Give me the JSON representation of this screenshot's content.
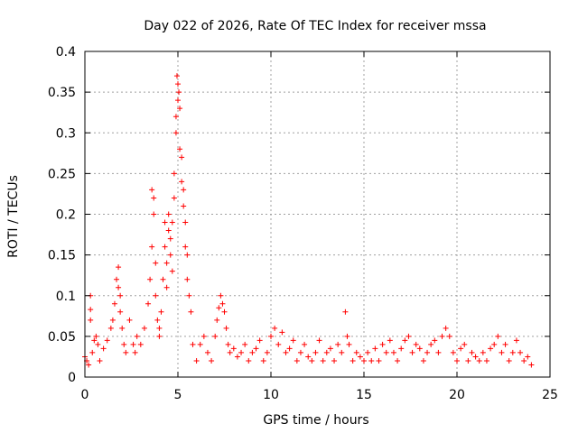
{
  "chart_data": {
    "type": "scatter",
    "title": "Day 022 of 2026, Rate Of TEC Index for receiver mssa",
    "xlabel": "GPS time / hours",
    "ylabel": "ROTI / TECUs",
    "xlim": [
      0,
      25
    ],
    "ylim": [
      0,
      0.4
    ],
    "x_ticks": [
      0,
      5,
      10,
      15,
      20,
      25
    ],
    "x_tick_labels": [
      "0",
      "5",
      "10",
      "15",
      "20",
      "25"
    ],
    "y_ticks": [
      0,
      0.05,
      0.1,
      0.15,
      0.2,
      0.25,
      0.3,
      0.35,
      0.4
    ],
    "y_tick_labels": [
      "0",
      "0.05",
      "0.1",
      "0.15",
      "0.2",
      "0.25",
      "0.3",
      "0.35",
      "0.4"
    ],
    "grid": true,
    "marker": "+",
    "marker_color": "#ff0000",
    "series": [
      {
        "name": "ROTI",
        "x": [
          0.0,
          0.1,
          0.2,
          0.3,
          0.3,
          0.3,
          0.4,
          0.5,
          0.6,
          0.7,
          0.8,
          1.0,
          1.2,
          1.4,
          1.5,
          1.6,
          1.7,
          1.8,
          1.8,
          1.9,
          1.9,
          2.0,
          2.1,
          2.2,
          2.4,
          2.6,
          2.7,
          2.8,
          3.0,
          3.2,
          3.4,
          3.5,
          3.6,
          3.6,
          3.7,
          3.7,
          3.8,
          3.8,
          3.9,
          4.0,
          4.0,
          4.1,
          4.2,
          4.3,
          4.3,
          4.4,
          4.4,
          4.5,
          4.5,
          4.6,
          4.6,
          4.7,
          4.7,
          4.8,
          4.8,
          4.9,
          4.9,
          4.95,
          5.0,
          5.0,
          5.05,
          5.1,
          5.1,
          5.2,
          5.2,
          5.3,
          5.3,
          5.4,
          5.4,
          5.5,
          5.5,
          5.6,
          5.7,
          5.8,
          6.0,
          6.2,
          6.4,
          6.6,
          6.8,
          7.0,
          7.1,
          7.2,
          7.3,
          7.4,
          7.5,
          7.6,
          7.7,
          7.8,
          8.0,
          8.2,
          8.4,
          8.6,
          8.8,
          9.0,
          9.2,
          9.4,
          9.6,
          9.8,
          10.0,
          10.2,
          10.4,
          10.6,
          10.8,
          11.0,
          11.2,
          11.4,
          11.6,
          11.8,
          12.0,
          12.2,
          12.4,
          12.6,
          12.8,
          13.0,
          13.2,
          13.4,
          13.6,
          13.8,
          14.0,
          14.1,
          14.2,
          14.4,
          14.6,
          14.8,
          15.0,
          15.2,
          15.4,
          15.6,
          15.8,
          16.0,
          16.2,
          16.4,
          16.6,
          16.8,
          17.0,
          17.2,
          17.4,
          17.6,
          17.8,
          18.0,
          18.2,
          18.4,
          18.6,
          18.8,
          19.0,
          19.2,
          19.4,
          19.6,
          19.8,
          20.0,
          20.2,
          20.4,
          20.6,
          20.8,
          21.0,
          21.2,
          21.4,
          21.6,
          21.8,
          22.0,
          22.2,
          22.4,
          22.6,
          22.8,
          23.0,
          23.2,
          23.4,
          23.6,
          23.8,
          24.0
        ],
        "y": [
          0.025,
          0.02,
          0.015,
          0.1,
          0.083,
          0.07,
          0.03,
          0.045,
          0.05,
          0.04,
          0.02,
          0.035,
          0.045,
          0.06,
          0.07,
          0.09,
          0.12,
          0.135,
          0.11,
          0.1,
          0.08,
          0.06,
          0.04,
          0.03,
          0.07,
          0.04,
          0.03,
          0.05,
          0.04,
          0.06,
          0.09,
          0.12,
          0.16,
          0.23,
          0.22,
          0.2,
          0.14,
          0.1,
          0.07,
          0.05,
          0.06,
          0.08,
          0.12,
          0.19,
          0.16,
          0.14,
          0.11,
          0.18,
          0.2,
          0.17,
          0.15,
          0.13,
          0.19,
          0.22,
          0.25,
          0.3,
          0.32,
          0.37,
          0.36,
          0.34,
          0.35,
          0.33,
          0.28,
          0.27,
          0.24,
          0.23,
          0.21,
          0.19,
          0.16,
          0.15,
          0.12,
          0.1,
          0.08,
          0.04,
          0.02,
          0.04,
          0.05,
          0.03,
          0.02,
          0.05,
          0.07,
          0.085,
          0.1,
          0.09,
          0.08,
          0.06,
          0.04,
          0.03,
          0.035,
          0.025,
          0.03,
          0.04,
          0.02,
          0.03,
          0.035,
          0.045,
          0.02,
          0.03,
          0.05,
          0.06,
          0.04,
          0.055,
          0.03,
          0.035,
          0.045,
          0.02,
          0.03,
          0.04,
          0.025,
          0.02,
          0.03,
          0.045,
          0.02,
          0.03,
          0.035,
          0.02,
          0.04,
          0.03,
          0.08,
          0.05,
          0.04,
          0.02,
          0.03,
          0.025,
          0.02,
          0.03,
          0.02,
          0.035,
          0.02,
          0.04,
          0.03,
          0.045,
          0.03,
          0.02,
          0.035,
          0.045,
          0.05,
          0.03,
          0.04,
          0.035,
          0.02,
          0.03,
          0.04,
          0.045,
          0.03,
          0.05,
          0.06,
          0.05,
          0.03,
          0.02,
          0.035,
          0.04,
          0.02,
          0.03,
          0.025,
          0.02,
          0.03,
          0.02,
          0.035,
          0.04,
          0.05,
          0.03,
          0.04,
          0.02,
          0.03,
          0.045,
          0.03,
          0.02,
          0.025,
          0.015
        ]
      }
    ]
  }
}
